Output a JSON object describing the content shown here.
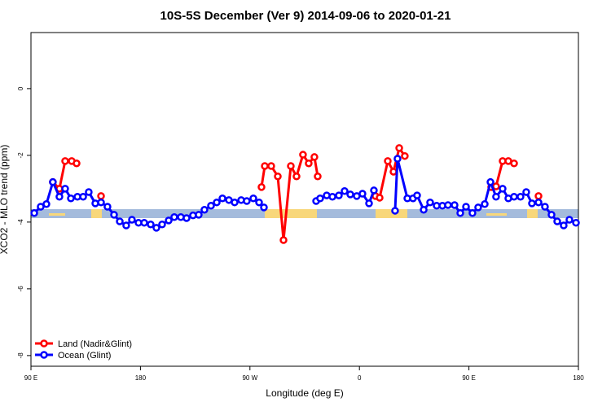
{
  "chart_data": {
    "type": "line",
    "title": "10S-5S December (Ver 9)   2014-09-06 to 2020-01-21",
    "x_label": "Longitude (deg E)",
    "y_label": "XCO2 - MLO trend (ppm)",
    "xlim": [
      90,
      540
    ],
    "xticks": [
      {
        "value": 90,
        "label": "90 E"
      },
      {
        "value": 180,
        "label": "180"
      },
      {
        "value": 270,
        "label": "90 W"
      },
      {
        "value": 360,
        "label": "0"
      },
      {
        "value": 450,
        "label": "90 E"
      },
      {
        "value": 540,
        "label": "180"
      }
    ],
    "ylim": [
      -8.32,
      1.68
    ],
    "yticks": [
      0,
      -2,
      -4,
      -6,
      -8
    ],
    "legend": "bottom-left",
    "series": [
      {
        "name": "Land (Nadir&Glint)",
        "color": "#ff0000",
        "x": [
          108,
          113.4,
          118.1,
          123.5,
          127.5,
          null,
          147.6,
          null,
          279.5,
          282.2,
          287.5,
          292.9,
          297.6,
          303.6,
          308.3,
          313.6,
          318.3,
          323,
          325.7,
          null,
          373.2,
          376.6,
          383.3,
          388,
          392.7,
          397.3,
          null,
          468.3,
          472.3,
          477.7,
          482.4,
          487.1,
          null,
          507.2
        ],
        "values": [
          -2.8,
          -3.0,
          -2.17,
          -2.17,
          -2.24,
          null,
          -3.22,
          null,
          -2.95,
          -2.32,
          -2.32,
          -2.63,
          -4.54,
          -2.32,
          -2.63,
          -1.98,
          -2.24,
          -2.05,
          -2.63,
          null,
          -3.22,
          -3.27,
          -2.17,
          -2.49,
          -1.78,
          -2.02,
          null,
          -2.95,
          -2.93,
          -2.17,
          -2.17,
          -2.24,
          null,
          -3.22
        ]
      },
      {
        "name": "Ocean (Glint)",
        "color": "#0000ff",
        "x": [
          92.7,
          98,
          102.7,
          108,
          113.4,
          118.1,
          122.8,
          128.2,
          132.9,
          137.5,
          142.9,
          147.6,
          152.9,
          158.3,
          163,
          168.3,
          173,
          178.4,
          183.1,
          188.4,
          193.1,
          197.8,
          203.2,
          207.8,
          213.2,
          217.9,
          223.2,
          227.9,
          232.6,
          238,
          242.7,
          247.4,
          252.7,
          257.4,
          262.8,
          267.4,
          272.8,
          277.5,
          281.5,
          null,
          324.4,
          327.7,
          333.1,
          337.8,
          343.1,
          347.8,
          352.5,
          357.8,
          362.5,
          367.9,
          371.9,
          null,
          389.3,
          391.3,
          399.4,
          404,
          407.4,
          412.8,
          418.1,
          423.5,
          428.2,
          432.8,
          438.2,
          442.9,
          447.6,
          452.9,
          457.6,
          463,
          467.7,
          472.3,
          477.7,
          482.4,
          487.1,
          492.4,
          497.1,
          501.8,
          507.2,
          512.5,
          517.9,
          522.6,
          527.9,
          532.6,
          538
        ],
        "values": [
          -3.73,
          -3.54,
          -3.46,
          -2.8,
          -3.24,
          -3.0,
          -3.29,
          -3.24,
          -3.24,
          -3.1,
          -3.44,
          -3.41,
          -3.54,
          -3.78,
          -3.98,
          -4.1,
          -3.93,
          -4.02,
          -4.02,
          -4.07,
          -4.17,
          -4.07,
          -3.95,
          -3.85,
          -3.85,
          -3.88,
          -3.8,
          -3.78,
          -3.63,
          -3.51,
          -3.41,
          -3.29,
          -3.34,
          -3.41,
          -3.34,
          -3.37,
          -3.29,
          -3.41,
          -3.56,
          null,
          -3.37,
          -3.29,
          -3.2,
          -3.24,
          -3.2,
          -3.07,
          -3.17,
          -3.22,
          -3.15,
          -3.44,
          -3.05,
          null,
          -3.66,
          -2.1,
          -3.29,
          -3.29,
          -3.2,
          -3.63,
          -3.41,
          -3.51,
          -3.51,
          -3.49,
          -3.49,
          -3.73,
          -3.54,
          -3.73,
          -3.56,
          -3.46,
          -2.8,
          -3.24,
          -3.0,
          -3.29,
          -3.24,
          -3.24,
          -3.1,
          -3.44,
          -3.41,
          -3.54,
          -3.78,
          -3.98,
          -4.1,
          -3.93,
          -4.02
        ]
      }
    ]
  }
}
